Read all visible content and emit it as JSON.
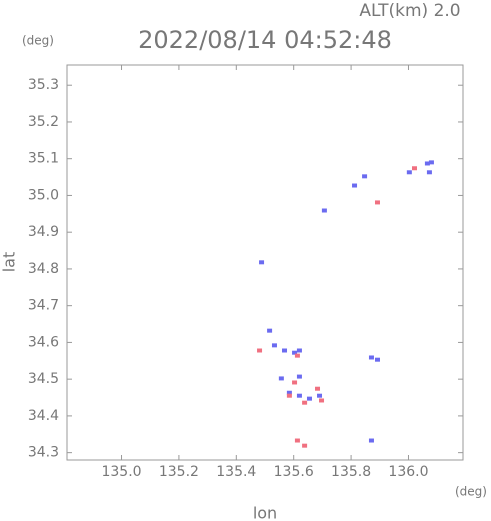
{
  "chart_data": {
    "type": "scatter",
    "title": "2022/08/14 04:52:48",
    "subtitle": "ALT(km) 2.0",
    "x_label": "lon",
    "y_label": "lat",
    "x_unit": "(deg)",
    "y_unit": "(deg)",
    "xlim": [
      134.81,
      136.19
    ],
    "ylim": [
      34.28,
      35.355
    ],
    "xticks": [
      {
        "value": 135.0,
        "label": "135.0"
      },
      135.2,
      135.4,
      135.6,
      135.8,
      {
        "value": 136.0,
        "label": "136.0"
      }
    ],
    "yticks": [
      34.3,
      34.4,
      34.5,
      34.6,
      34.7,
      34.8,
      34.9,
      {
        "value": 35.0,
        "label": "35.0"
      },
      35.1,
      35.2,
      35.3
    ],
    "series": [
      {
        "color": "#6b6bf0",
        "x": [
          136.066,
          136.08,
          136.073,
          136.003,
          135.847,
          135.812,
          135.707,
          135.516,
          135.533,
          135.568,
          135.603,
          135.62,
          135.871,
          135.892,
          135.557,
          135.62,
          135.585,
          135.62,
          135.655,
          135.69,
          135.871,
          135.488
        ],
        "values": [
          35.087,
          35.09,
          35.063,
          35.063,
          35.052,
          35.027,
          34.959,
          34.632,
          34.592,
          34.578,
          34.572,
          34.578,
          34.559,
          34.553,
          34.502,
          34.507,
          34.463,
          34.455,
          34.447,
          34.455,
          34.333,
          34.818
        ]
      },
      {
        "color": "#f07080",
        "x": [
          135.892,
          136.021,
          135.481,
          135.613,
          135.603,
          135.585,
          135.683,
          135.697,
          135.638,
          135.613,
          135.638
        ],
        "values": [
          34.981,
          35.074,
          34.578,
          34.564,
          34.491,
          34.455,
          34.474,
          34.442,
          34.436,
          34.333,
          34.319
        ]
      }
    ]
  }
}
